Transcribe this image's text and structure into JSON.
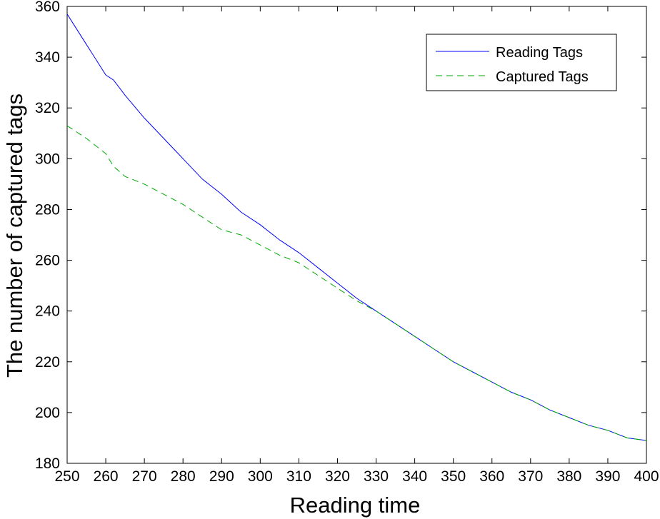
{
  "chart_data": {
    "type": "line",
    "title": "",
    "xlabel": "Reading time",
    "ylabel": "The number of captured tags",
    "xlim": [
      250,
      400
    ],
    "ylim": [
      180,
      360
    ],
    "xticks": [
      250,
      260,
      270,
      280,
      290,
      300,
      310,
      320,
      330,
      340,
      350,
      360,
      370,
      380,
      390,
      400
    ],
    "yticks": [
      180,
      200,
      220,
      240,
      260,
      280,
      300,
      320,
      340,
      360
    ],
    "grid": false,
    "legend_position": "top-right",
    "x": [
      250,
      255,
      260,
      262,
      265,
      270,
      275,
      280,
      285,
      290,
      295,
      300,
      305,
      310,
      315,
      320,
      325,
      330,
      335,
      340,
      345,
      350,
      355,
      360,
      365,
      370,
      375,
      380,
      385,
      390,
      395,
      400
    ],
    "series": [
      {
        "name": "Reading Tags",
        "color": "#0000ff",
        "dash": "solid",
        "values": [
          357,
          345,
          333,
          331,
          325,
          316,
          308,
          300,
          292,
          286,
          279,
          274,
          268,
          263,
          257,
          251,
          245,
          240,
          235,
          230,
          225,
          220,
          216,
          212,
          208,
          205,
          201,
          198,
          195,
          193,
          190,
          189
        ]
      },
      {
        "name": "Captured Tags",
        "color": "#00aa00",
        "dash": "dashed",
        "values": [
          313,
          308,
          302,
          297,
          293,
          290,
          286,
          282,
          277,
          272,
          270,
          266,
          262,
          259,
          254,
          249,
          244,
          240,
          235,
          230,
          225,
          220,
          216,
          212,
          208,
          205,
          201,
          198,
          195,
          193,
          190,
          189
        ]
      }
    ]
  }
}
